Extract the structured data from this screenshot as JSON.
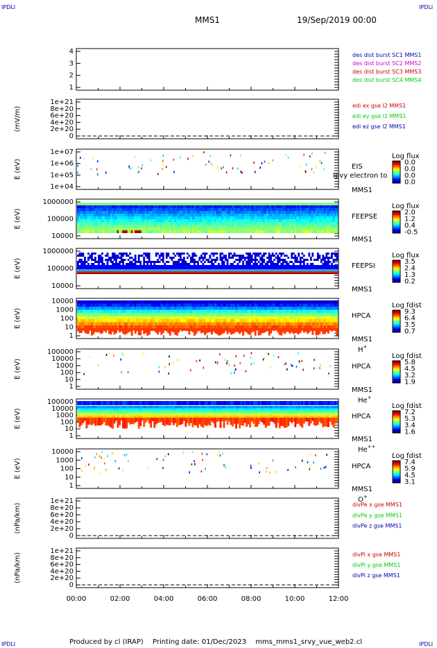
{
  "corner_tl": "IPDLI",
  "corner_tr": "IPDLI",
  "corner_bl": "IPDLI",
  "corner_br": "IPDLI",
  "header": {
    "spacecraft": "MMS1",
    "date": "19/Sep/2019 00:00"
  },
  "footer": {
    "producer": "Produced by cl (IRAP)",
    "printing": "Printing date: 01/Dec/2023",
    "file": "mms_mms1_srvy_vue_web2.cl"
  },
  "colors": {
    "mms1": "#0000aa",
    "mms2": "#cc00cc",
    "mms3": "#cc0000",
    "mms4": "#00cc00"
  },
  "chart_data": [
    {
      "type": "line",
      "id": "burst",
      "ylabel": "",
      "yticks": [
        "1",
        "2",
        "3",
        "4"
      ],
      "legend": [
        {
          "name": "des dist burst SC1 MMS1",
          "color": "#0000aa"
        },
        {
          "name": "des dist burst SC2 MMS2",
          "color": "#cc00cc"
        },
        {
          "name": "des dist burst SC3 MMS3",
          "color": "#cc0000"
        },
        {
          "name": "des dist burst SC4 MMS4",
          "color": "#00cc00"
        }
      ],
      "series": []
    },
    {
      "type": "line",
      "id": "edi",
      "ylabel": "(mV/m)",
      "yticks": [
        "0",
        "2e+20",
        "4e+20",
        "6e+20",
        "8e+20",
        "1e+21"
      ],
      "legend": [
        {
          "name": "edi ex gse l2 MMS1",
          "color": "#cc0000"
        },
        {
          "name": "edi ey gse l2 MMS1",
          "color": "#00cc00"
        },
        {
          "name": "edi ez gse l2 MMS1",
          "color": "#0000aa"
        }
      ],
      "zero_line": true
    },
    {
      "type": "heatmap",
      "id": "eis",
      "ylabel": "E (eV)",
      "yticks": [
        "1e+04",
        "1e+05",
        "1e+06",
        "1e+07"
      ],
      "labels": [
        "EIS",
        "MMS1"
      ],
      "overlay_text": "Ipvy electron to",
      "colorbar": {
        "title": "Log flux",
        "ticks": [
          "0.0",
          "0.0",
          "0.0",
          "0.0"
        ]
      }
    },
    {
      "type": "heatmap",
      "id": "feepse",
      "ylabel": "E (eV)",
      "yticks": [
        "10000",
        "100000",
        "1000000"
      ],
      "labels": [
        "FEEPSE",
        "MMS1"
      ],
      "colorbar": {
        "title": "Log flux",
        "ticks": [
          "2.0",
          "1.2",
          "0.4",
          "-0.5"
        ]
      }
    },
    {
      "type": "heatmap",
      "id": "feepsi",
      "ylabel": "E (eV)",
      "yticks": [
        "10000",
        "100000",
        "1000000"
      ],
      "labels": [
        "FEEPSI",
        "MMS1"
      ],
      "colorbar": {
        "title": "Log flux",
        "ticks": [
          "3.5",
          "2.4",
          "1.3",
          "0.2"
        ]
      }
    },
    {
      "type": "heatmap",
      "id": "hpca_h",
      "ylabel": "E (eV)",
      "yticks": [
        "1",
        "10",
        "100",
        "1000",
        "10000"
      ],
      "labels": [
        "HPCA",
        "MMS1"
      ],
      "species": "H",
      "charge": "+",
      "colorbar": {
        "title": "Log fdist",
        "ticks": [
          "9.3",
          "6.4",
          "3.5",
          "0.7"
        ]
      }
    },
    {
      "type": "heatmap",
      "id": "hpca_he1",
      "ylabel": "E (eV)",
      "yticks": [
        "1",
        "10",
        "100",
        "1000",
        "10000",
        "100000"
      ],
      "labels": [
        "HPCA",
        "MMS1"
      ],
      "species": "He",
      "charge": "+",
      "colorbar": {
        "title": "Log fdist",
        "ticks": [
          "5.8",
          "4.5",
          "3.2",
          "1.9"
        ]
      }
    },
    {
      "type": "heatmap",
      "id": "hpca_he2",
      "ylabel": "E (eV)",
      "yticks": [
        "1",
        "10",
        "100",
        "1000",
        "10000",
        "100000"
      ],
      "labels": [
        "HPCA",
        "MMS1"
      ],
      "species": "He",
      "charge": "++",
      "colorbar": {
        "title": "Log fdist",
        "ticks": [
          "7.2",
          "5.3",
          "3.4",
          "1.6"
        ]
      }
    },
    {
      "type": "heatmap",
      "id": "hpca_o",
      "ylabel": "E (eV)",
      "yticks": [
        "1",
        "10",
        "100",
        "1000",
        "10000"
      ],
      "labels": [
        "HPCA",
        "MMS1"
      ],
      "species": "O",
      "charge": "+",
      "colorbar": {
        "title": "Log fdist",
        "ticks": [
          "7.4",
          "5.9",
          "4.5",
          "3.1"
        ]
      }
    },
    {
      "type": "line",
      "id": "divpe",
      "ylabel": "(nPa/km)",
      "yticks": [
        "0",
        "2e+20",
        "4e+20",
        "6e+20",
        "8e+20",
        "1e+21"
      ],
      "legend": [
        {
          "name": "divPe x gse MMS1",
          "color": "#cc0000"
        },
        {
          "name": "divPe y gse MMS1",
          "color": "#00cc00"
        },
        {
          "name": "divPe z gse MMS1",
          "color": "#0000aa"
        }
      ],
      "zero_line": true
    },
    {
      "type": "line",
      "id": "divpi",
      "ylabel": "(nPa/km)",
      "yticks": [
        "0",
        "2e+20",
        "4e+20",
        "6e+20",
        "8e+20",
        "1e+21"
      ],
      "legend": [
        {
          "name": "divPi x gse MMS1",
          "color": "#cc0000"
        },
        {
          "name": "divPi y gse MMS1",
          "color": "#00cc00"
        },
        {
          "name": "divPi z gse MMS1",
          "color": "#0000aa"
        }
      ],
      "zero_line": true
    }
  ],
  "xaxis": {
    "ticks": [
      "00:00",
      "02:00",
      "04:00",
      "06:00",
      "08:00",
      "10:00",
      "12:00"
    ],
    "range": [
      "00:00",
      "12:00"
    ]
  }
}
